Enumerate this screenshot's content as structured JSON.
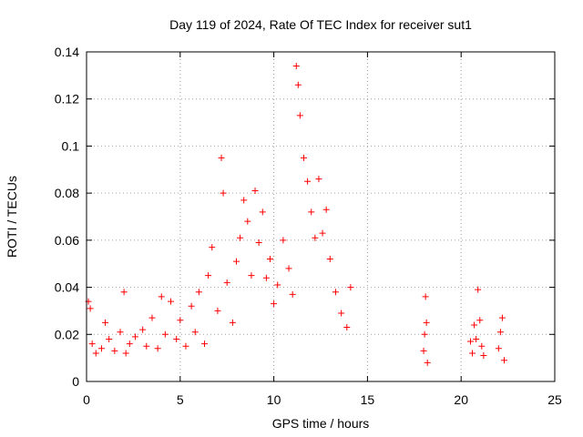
{
  "chart_data": {
    "type": "scatter",
    "title": "Day 119 of 2024, Rate Of TEC Index for receiver sut1",
    "xlabel": "GPS time / hours",
    "ylabel": "ROTI / TECUs",
    "xlim": [
      0,
      25
    ],
    "ylim": [
      0,
      0.14
    ],
    "x_ticks": [
      0,
      5,
      10,
      15,
      20,
      25
    ],
    "y_ticks": [
      0,
      0.02,
      0.04,
      0.06,
      0.08,
      0.1,
      0.12,
      0.14
    ],
    "x_tick_labels": [
      "0",
      "5",
      "10",
      "15",
      "20",
      "25"
    ],
    "y_tick_labels": [
      "0",
      "0.02",
      "0.04",
      "0.06",
      "0.08",
      "0.1",
      "0.12",
      "0.14"
    ],
    "grid": true,
    "marker": "+",
    "marker_color": "#ff0000",
    "series": [
      {
        "name": "ROTI",
        "x": [
          0.1,
          0.2,
          0.3,
          0.5,
          0.8,
          1.0,
          1.2,
          1.5,
          1.8,
          2.0,
          2.1,
          2.3,
          2.6,
          3.0,
          3.2,
          3.5,
          3.8,
          4.0,
          4.2,
          4.5,
          4.8,
          5.0,
          5.3,
          5.6,
          5.8,
          6.0,
          6.3,
          6.5,
          6.7,
          7.0,
          7.2,
          7.3,
          7.5,
          7.8,
          8.0,
          8.2,
          8.4,
          8.6,
          8.8,
          9.0,
          9.2,
          9.4,
          9.6,
          9.8,
          10.0,
          10.2,
          10.5,
          10.8,
          11.0,
          11.2,
          11.3,
          11.4,
          11.6,
          11.8,
          12.0,
          12.2,
          12.4,
          12.6,
          12.8,
          13.0,
          13.3,
          13.6,
          13.9,
          14.1,
          18.0,
          18.05,
          18.1,
          18.15,
          18.2,
          20.5,
          20.6,
          20.7,
          20.8,
          20.9,
          21.0,
          21.1,
          21.2,
          22.0,
          22.1,
          22.2,
          22.3
        ],
        "y": [
          0.034,
          0.031,
          0.016,
          0.012,
          0.014,
          0.025,
          0.018,
          0.013,
          0.021,
          0.038,
          0.012,
          0.016,
          0.019,
          0.022,
          0.015,
          0.027,
          0.014,
          0.036,
          0.02,
          0.034,
          0.018,
          0.026,
          0.015,
          0.032,
          0.021,
          0.038,
          0.016,
          0.045,
          0.057,
          0.03,
          0.095,
          0.08,
          0.042,
          0.025,
          0.051,
          0.061,
          0.077,
          0.068,
          0.045,
          0.081,
          0.059,
          0.072,
          0.044,
          0.052,
          0.033,
          0.041,
          0.06,
          0.048,
          0.037,
          0.134,
          0.126,
          0.113,
          0.095,
          0.085,
          0.072,
          0.061,
          0.086,
          0.063,
          0.073,
          0.052,
          0.038,
          0.029,
          0.023,
          0.04,
          0.013,
          0.02,
          0.036,
          0.025,
          0.008,
          0.017,
          0.012,
          0.024,
          0.018,
          0.039,
          0.026,
          0.015,
          0.011,
          0.014,
          0.021,
          0.027,
          0.009
        ]
      }
    ]
  }
}
